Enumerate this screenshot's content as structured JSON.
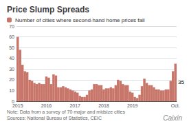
{
  "chart_data": {
    "type": "bar",
    "title": "Price Slump Spreads",
    "subtitle": "Number of cities where second-hand home prices fall",
    "note": "Note: Data from a survey of 70 major and midsize cities\nSources: National Bureau of Statistics, CEIC",
    "brand": "Caixin",
    "color": "#c8756a",
    "categories": [
      "2015",
      null,
      null,
      null,
      null,
      null,
      null,
      null,
      null,
      null,
      null,
      null,
      "2016",
      null,
      null,
      null,
      null,
      null,
      null,
      null,
      null,
      null,
      null,
      null,
      "2017",
      null,
      null,
      null,
      null,
      null,
      null,
      null,
      null,
      null,
      null,
      null,
      "2018",
      null,
      null,
      null,
      null,
      null,
      null,
      null,
      null,
      null,
      null,
      null,
      "2019",
      null,
      null,
      null,
      null,
      null,
      null,
      null,
      null,
      null,
      null,
      null,
      null,
      null,
      null,
      null,
      null,
      null,
      "Oct."
    ],
    "values": [
      60,
      48,
      34,
      28,
      27,
      20,
      19,
      17,
      16,
      17,
      16,
      16,
      23,
      22,
      16,
      25,
      24,
      13,
      13,
      14,
      13,
      12,
      11,
      10,
      9,
      8,
      5,
      4,
      4,
      6,
      10,
      11,
      16,
      16,
      15,
      15,
      11,
      12,
      12,
      13,
      12,
      15,
      20,
      19,
      16,
      15,
      15,
      9,
      8,
      4,
      3,
      6,
      14,
      21,
      17,
      15,
      15,
      13,
      11,
      11,
      10,
      10,
      11,
      11,
      19,
      28,
      35
    ],
    "annotation": {
      "text": "35",
      "index": 66
    },
    "ylim": [
      0,
      70
    ],
    "yticks": [
      0,
      10,
      20,
      30,
      40,
      50,
      60,
      70
    ],
    "grid": true
  }
}
